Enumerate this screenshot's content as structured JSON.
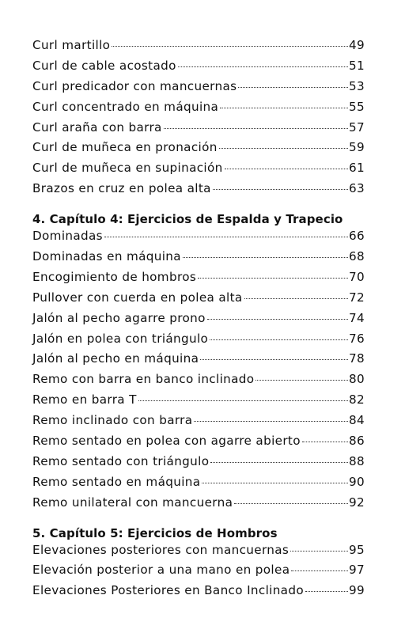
{
  "groups": [
    {
      "heading": "",
      "entries": [
        {
          "label": "Curl martillo",
          "page": "49"
        },
        {
          "label": "Curl de cable acostado",
          "page": "51"
        },
        {
          "label": "Curl predicador con mancuernas ",
          "page": "53"
        },
        {
          "label": "Curl concentrado en máquina ",
          "page": "55"
        },
        {
          "label": "Curl araña con barra",
          "page": "57"
        },
        {
          "label": "Curl de muñeca en pronación ",
          "page": "59"
        },
        {
          "label": "Curl de muñeca en supinación ",
          "page": "61"
        },
        {
          "label": "Brazos en cruz en polea alta",
          "page": "63"
        }
      ]
    },
    {
      "heading": "4. Capítulo 4: Ejercicios de Espalda y Trapecio",
      "entries": [
        {
          "label": "Dominadas",
          "page": "66"
        },
        {
          "label": "Dominadas en máquina ",
          "page": "68"
        },
        {
          "label": "Encogimiento de hombros ",
          "page": "70"
        },
        {
          "label": "Pullover con cuerda en polea alta ",
          "page": "72"
        },
        {
          "label": "Jalón al pecho agarre prono ",
          "page": "74"
        },
        {
          "label": "Jalón en polea con triángulo ",
          "page": "76"
        },
        {
          "label": "Jalón al pecho en máquina",
          "page": "78"
        },
        {
          "label": "Remo con barra en banco inclinado",
          "page": "80"
        },
        {
          "label": "Remo en barra T",
          "page": "82"
        },
        {
          "label": "Remo inclinado con barra",
          "page": "84"
        },
        {
          "label": "Remo sentado en polea con agarre abierto",
          "page": "86"
        },
        {
          "label": "Remo sentado con triángulo",
          "page": "88"
        },
        {
          "label": "Remo sentado en máquina",
          "page": "90"
        },
        {
          "label": "Remo unilateral con mancuerna",
          "page": "92"
        }
      ]
    },
    {
      "heading": "5. Capítulo 5: Ejercicios de Hombros",
      "entries": [
        {
          "label": "Elevaciones posteriores con mancuernas ",
          "page": "95"
        },
        {
          "label": "Elevación posterior a una mano en polea",
          "page": "97"
        },
        {
          "label": "Elevaciones Posteriores en Banco Inclinado",
          "page": "99"
        }
      ]
    }
  ]
}
